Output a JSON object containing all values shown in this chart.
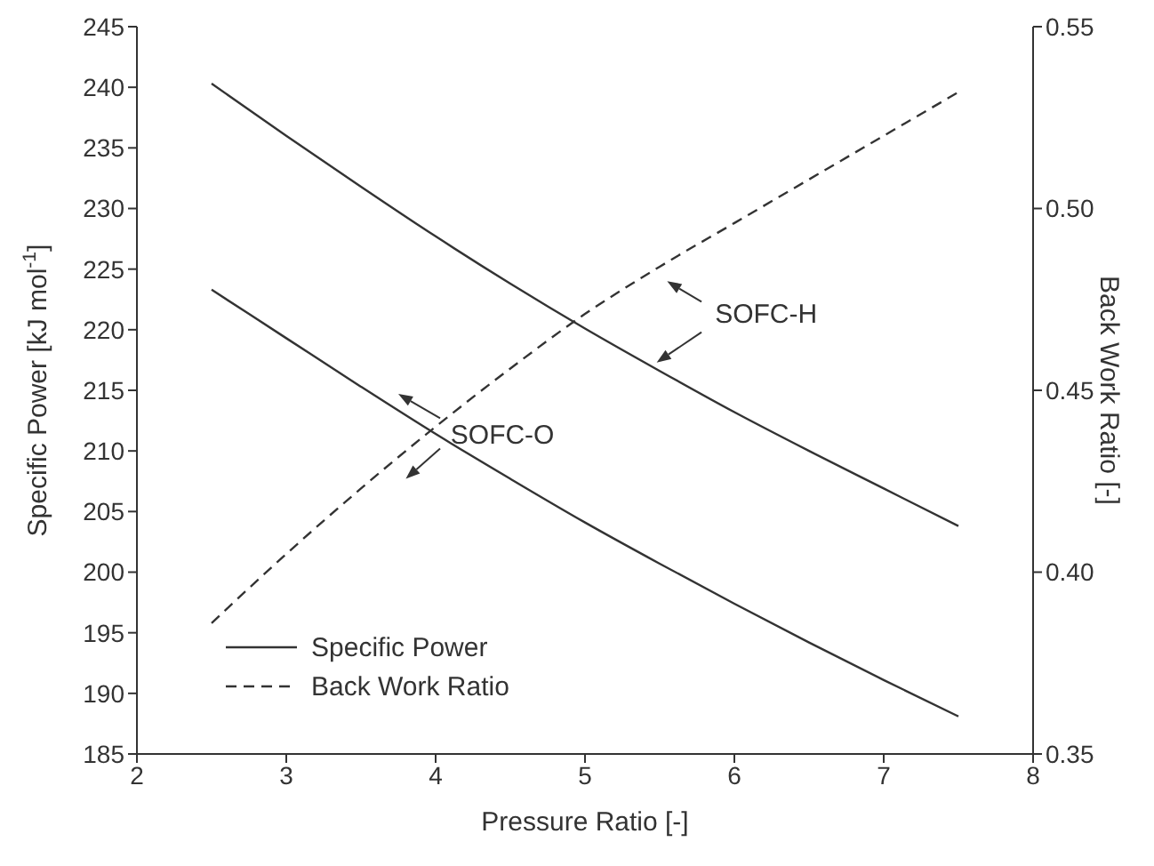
{
  "chart_data": {
    "type": "line",
    "xlabel": "Pressure Ratio [-]",
    "ylabel": "Specific Power [kJ mol$^{-1}$]",
    "y2label": "Back Work Ratio [-]",
    "x": [
      2.5,
      3,
      3.5,
      4,
      4.5,
      5,
      5.5,
      6,
      6.5,
      7,
      7.5
    ],
    "series": [
      {
        "name": "Specific Power",
        "color": "#333333",
        "line_style": "solid",
        "values": [
          240.3,
          236.0,
          231.8,
          227.7,
          223.8,
          220.1,
          216.6,
          213.2,
          210.0,
          206.9,
          203.8
        ]
      },
      {
        "color": "#333333",
        "line_style": "solid",
        "values": [
          223.3,
          219.3,
          215.3,
          211.4,
          207.7,
          204.1,
          200.7,
          197.4,
          194.2,
          191.1,
          188.1
        ]
      },
      {
        "name": "Back Work Ratio",
        "color": "#333333",
        "line_style": "dashed",
        "axis": "y2",
        "values": [
          0.386,
          0.405,
          0.423,
          0.44,
          0.456,
          0.471,
          0.484,
          0.496,
          0.508,
          0.52,
          0.532
        ]
      }
    ],
    "xlim": [
      2,
      8
    ],
    "xticks": [
      2,
      3,
      4,
      5,
      6,
      7,
      8
    ],
    "ylim": [
      185,
      245
    ],
    "yticks": [
      185,
      190,
      195,
      200,
      205,
      210,
      215,
      220,
      225,
      230,
      235,
      240,
      245
    ],
    "y2lim": [
      0.35,
      0.55
    ],
    "y2ticks": [
      {
        "value": 0.35,
        "label": "0.35"
      },
      {
        "value": 0.4,
        "label": "0.40"
      },
      {
        "value": 0.45,
        "label": "0.45"
      },
      {
        "value": 0.5,
        "label": "0.50"
      },
      {
        "value": 0.55,
        "label": "0.55"
      }
    ],
    "annotations": [
      "SOFC-H",
      "SOFC-O"
    ],
    "legend": "bottom left",
    "grid": false,
    "marker": "none"
  }
}
